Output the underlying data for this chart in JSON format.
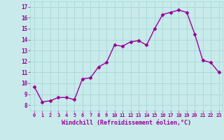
{
  "x": [
    0,
    1,
    2,
    3,
    4,
    5,
    6,
    7,
    8,
    9,
    10,
    11,
    12,
    13,
    14,
    15,
    16,
    17,
    18,
    19,
    20,
    21,
    22,
    23
  ],
  "y": [
    9.7,
    8.3,
    8.4,
    8.7,
    8.7,
    8.5,
    10.4,
    10.5,
    11.5,
    11.9,
    13.5,
    13.4,
    13.8,
    13.9,
    13.5,
    15.0,
    16.3,
    16.5,
    16.7,
    16.5,
    14.5,
    12.1,
    11.9,
    11.0
  ],
  "line_color": "#990099",
  "marker": "D",
  "markersize": 2.5,
  "linewidth": 1.0,
  "bg_color": "#c8eaea",
  "grid_color": "#a8d8d8",
  "xlabel": "Windchill (Refroidissement éolien,°C)",
  "xlabel_color": "#990099",
  "tick_color": "#990099",
  "ylim": [
    7.5,
    17.5
  ],
  "yticks": [
    8,
    9,
    10,
    11,
    12,
    13,
    14,
    15,
    16,
    17
  ],
  "xticks": [
    0,
    1,
    2,
    3,
    4,
    5,
    6,
    7,
    8,
    9,
    10,
    11,
    12,
    13,
    14,
    15,
    16,
    17,
    18,
    19,
    20,
    21,
    22,
    23
  ],
  "xlim": [
    -0.5,
    23.5
  ]
}
